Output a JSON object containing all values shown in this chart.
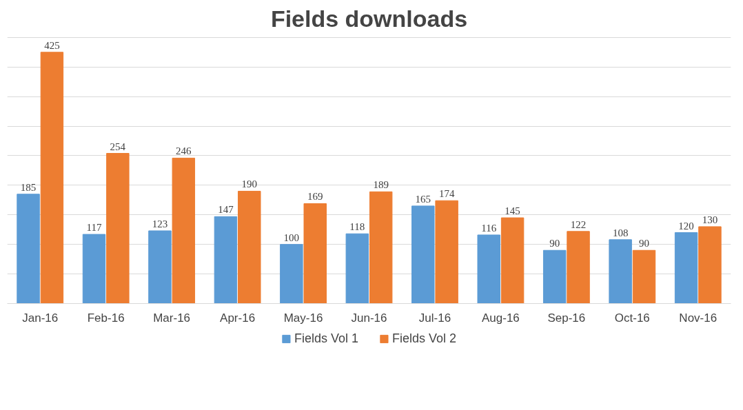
{
  "chart_data": {
    "type": "bar",
    "title": "Fields downloads",
    "categories": [
      "Jan-16",
      "Feb-16",
      "Mar-16",
      "Apr-16",
      "May-16",
      "Jun-16",
      "Jul-16",
      "Aug-16",
      "Sep-16",
      "Oct-16",
      "Nov-16"
    ],
    "series": [
      {
        "name": "Fields Vol 1",
        "color": "#5b9bd5",
        "values": [
          185,
          117,
          123,
          147,
          100,
          118,
          165,
          116,
          90,
          108,
          120
        ]
      },
      {
        "name": "Fields Vol 2",
        "color": "#ed7d31",
        "values": [
          425,
          254,
          246,
          190,
          169,
          189,
          174,
          145,
          122,
          90,
          130
        ]
      }
    ],
    "yticks": [
      {
        "value": 0,
        "label": null
      },
      {
        "value": 50,
        "label": null
      },
      {
        "value": 100,
        "label": null
      },
      {
        "value": 150,
        "label": null
      },
      {
        "value": 200,
        "label": null
      },
      {
        "value": 250,
        "label": null
      },
      {
        "value": 300,
        "label": null
      },
      {
        "value": 350,
        "label": null
      },
      {
        "value": 400,
        "label": null
      },
      {
        "value": 450,
        "label": null
      }
    ],
    "tick_labels": "x",
    "grid": "y",
    "legend": "bottom",
    "data_labels": true
  }
}
